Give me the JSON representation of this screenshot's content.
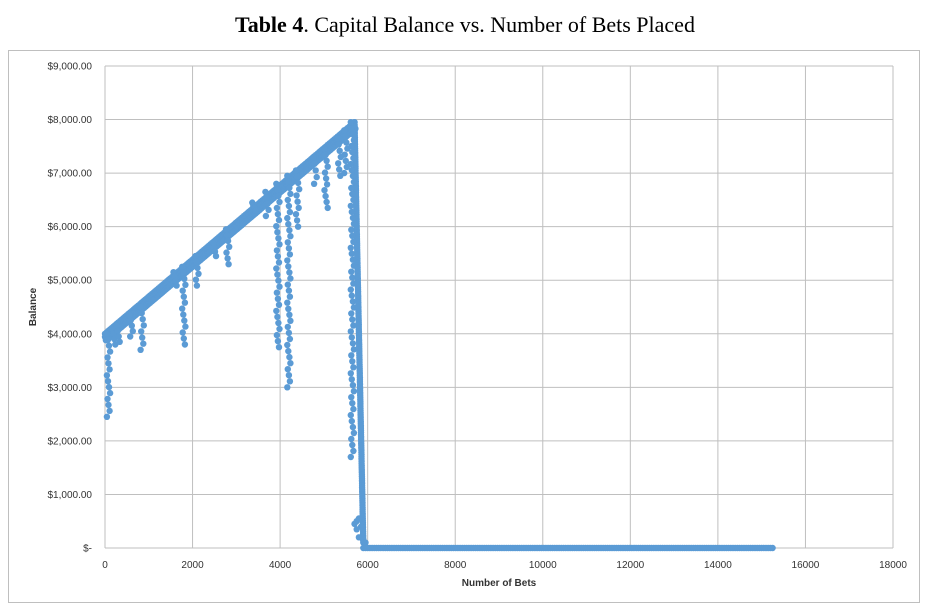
{
  "chart_data": {
    "type": "scatter",
    "title_bold": "Table 4",
    "title_rest": ". Capital Balance vs. Number of Bets Placed",
    "xlabel": "Number of Bets",
    "ylabel": "Balance",
    "xlim": [
      0,
      18000
    ],
    "ylim": [
      0,
      9000
    ],
    "x_ticks": [
      "0",
      "2000",
      "4000",
      "6000",
      "8000",
      "10000",
      "12000",
      "14000",
      "16000",
      "18000"
    ],
    "y_ticks": [
      "$-",
      "$1,000.00",
      "$2,000.00",
      "$3,000.00",
      "$4,000.00",
      "$5,000.00",
      "$6,000.00",
      "$7,000.00",
      "$8,000.00",
      "$9,000.00"
    ],
    "grid": true,
    "marker_color": "#5b9bd5",
    "trend_segments": [
      {
        "x": [
          0,
          5700
        ],
        "y": [
          4000,
          7950
        ]
      },
      {
        "x": [
          5700,
          5900
        ],
        "y": [
          7950,
          100
        ]
      },
      {
        "x": [
          5900,
          15250
        ],
        "y": [
          0,
          0
        ]
      }
    ],
    "dip_clusters": [
      {
        "x": 80,
        "y_min": 2450,
        "y_max": 4000
      },
      {
        "x": 200,
        "y_min": 3800,
        "y_max": 4100
      },
      {
        "x": 300,
        "y_min": 3850,
        "y_max": 4150
      },
      {
        "x": 600,
        "y_min": 3950,
        "y_max": 4350
      },
      {
        "x": 850,
        "y_min": 3700,
        "y_max": 4500
      },
      {
        "x": 1600,
        "y_min": 4900,
        "y_max": 5150
      },
      {
        "x": 1800,
        "y_min": 3800,
        "y_max": 5250
      },
      {
        "x": 2100,
        "y_min": 4900,
        "y_max": 5450
      },
      {
        "x": 2500,
        "y_min": 5450,
        "y_max": 5700
      },
      {
        "x": 2800,
        "y_min": 5300,
        "y_max": 5950
      },
      {
        "x": 3400,
        "y_min": 6300,
        "y_max": 6450
      },
      {
        "x": 3700,
        "y_min": 6200,
        "y_max": 6650
      },
      {
        "x": 3950,
        "y_min": 3750,
        "y_max": 6800
      },
      {
        "x": 4200,
        "y_min": 3000,
        "y_max": 6950
      },
      {
        "x": 4400,
        "y_min": 6000,
        "y_max": 7050
      },
      {
        "x": 4800,
        "y_min": 6800,
        "y_max": 7300
      },
      {
        "x": 5050,
        "y_min": 6350,
        "y_max": 7450
      },
      {
        "x": 5350,
        "y_min": 6950,
        "y_max": 7650
      },
      {
        "x": 5500,
        "y_min": 7000,
        "y_max": 7800
      },
      {
        "x": 5650,
        "y_min": 1700,
        "y_max": 7950
      }
    ],
    "low_points": [
      {
        "x": 5700,
        "y": 450
      },
      {
        "x": 5750,
        "y": 500
      },
      {
        "x": 5800,
        "y": 550
      },
      {
        "x": 5850,
        "y": 400
      },
      {
        "x": 5800,
        "y": 200
      },
      {
        "x": 5900,
        "y": 150
      },
      {
        "x": 5950,
        "y": 100
      },
      {
        "x": 5750,
        "y": 350
      }
    ]
  }
}
